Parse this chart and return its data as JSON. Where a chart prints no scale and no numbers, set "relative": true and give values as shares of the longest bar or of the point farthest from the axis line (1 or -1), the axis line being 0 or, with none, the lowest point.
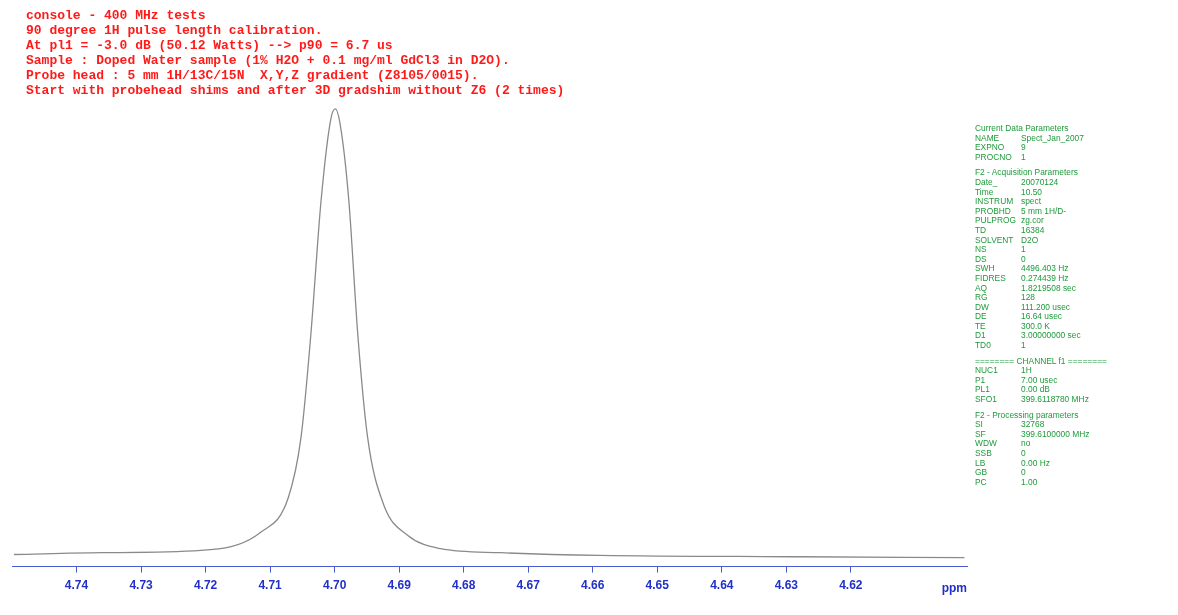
{
  "chart_data": {
    "type": "line",
    "title": "console - 400 MHz tests",
    "subtitle": "90 degree 1H pulse length calibration.\nAt pl1 = -3.0 dB (50.12 Watts) --> p90 = 6.7 us\nSample : Doped Water sample (1% H2O + 0.1 mg/ml GdCl3 in D2O).\nProbe head : 5 mm 1H/13C/15N  X,Y,Z gradient (Z8105/0015).\nStart with probehead shims and after 3D gradshim without Z6 (2 times)",
    "xlabel": "ppm",
    "relative": true,
    "xlim": [
      4.75,
      4.602
    ],
    "xticks": [
      4.74,
      4.73,
      4.72,
      4.71,
      {
        "value": 4.7,
        "label": "4.70"
      },
      4.69,
      4.68,
      4.67,
      4.66,
      4.65,
      4.64,
      4.63,
      4.62
    ],
    "grid": false,
    "legend": false,
    "marker": "none",
    "line_style": "solid",
    "x": [
      4.7497,
      4.7361,
      4.7207,
      4.7114,
      4.7072,
      4.7052,
      4.7037,
      4.7021,
      4.7006,
      4.6999,
      4.6991,
      4.6978,
      4.6964,
      4.6949,
      4.6924,
      4.6887,
      4.6836,
      4.6743,
      4.6589,
      4.6279,
      4.6024
    ],
    "series": [
      {
        "color": "#8a8a8a",
        "values": [
          0.007,
          0.011,
          0.016,
          0.057,
          0.133,
          0.269,
          0.495,
          0.796,
          0.977,
          1,
          0.962,
          0.796,
          0.495,
          0.269,
          0.118,
          0.05,
          0.02,
          0.011,
          0.005,
          0.002,
          0
        ]
      }
    ],
    "annotations": [
      "Current Data Parameters",
      "NAME  Spect_Jan_2007",
      "EXPNO  9",
      "PROCNO  1",
      "F2 - Acquisition Parameters",
      "Date_  20070124",
      "Time  10.50",
      "INSTRUM  spect",
      "PROBHD  5 mm 1H/D-",
      "PULPROG  zg.cor",
      "TD  16384",
      "SOLVENT  D2O",
      "NS  1",
      "DS  0",
      "SWH  4496.403 Hz",
      "FIDRES  0.274439 Hz",
      "AQ  1.8219508 sec",
      "RG  128",
      "DW  111.200 usec",
      "DE  16.64 usec",
      "TE  300.0 K",
      "D1  3.00000000 sec",
      "TD0  1",
      "======== CHANNEL f1 ========",
      "NUC1  1H",
      "P1  7.00 usec",
      "PL1  0.00 dB",
      "SFO1  399.6118780 MHz",
      "F2 - Processing parameters",
      "SI  32768",
      "SF  399.6100000 MHz",
      "WDW  no",
      "SSB  0",
      "LB  0.00 Hz",
      "GB  0",
      "PC  1.00"
    ]
  }
}
